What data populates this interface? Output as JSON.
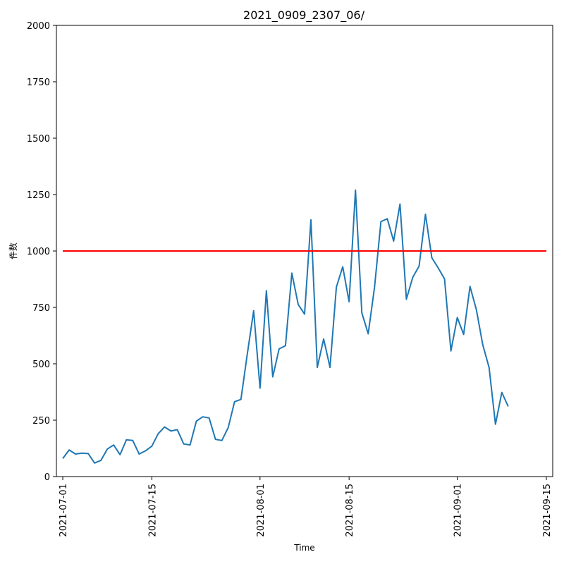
{
  "chart_data": {
    "type": "line",
    "title": "2021_0909_2307_06/",
    "xlabel": "Time",
    "ylabel": "件数",
    "ylim": [
      0,
      2000
    ],
    "xlim": [
      "2021-06-30",
      "2021-09-16"
    ],
    "yticks": [
      0,
      250,
      500,
      750,
      1000,
      1250,
      1500,
      1750,
      2000
    ],
    "xticks": [
      "2021-07-01",
      "2021-07-15",
      "2021-08-01",
      "2021-08-15",
      "2021-09-01",
      "2021-09-15"
    ],
    "grid": false,
    "series": [
      {
        "color": "#1f77b4",
        "x": [
          "2021-07-01",
          "2021-07-02",
          "2021-07-03",
          "2021-07-04",
          "2021-07-05",
          "2021-07-06",
          "2021-07-07",
          "2021-07-08",
          "2021-07-09",
          "2021-07-10",
          "2021-07-11",
          "2021-07-12",
          "2021-07-13",
          "2021-07-14",
          "2021-07-15",
          "2021-07-16",
          "2021-07-17",
          "2021-07-18",
          "2021-07-19",
          "2021-07-20",
          "2021-07-21",
          "2021-07-22",
          "2021-07-23",
          "2021-07-24",
          "2021-07-25",
          "2021-07-26",
          "2021-07-27",
          "2021-07-28",
          "2021-07-29",
          "2021-07-30",
          "2021-07-31",
          "2021-08-01",
          "2021-08-02",
          "2021-08-03",
          "2021-08-04",
          "2021-08-05",
          "2021-08-06",
          "2021-08-07",
          "2021-08-08",
          "2021-08-09",
          "2021-08-10",
          "2021-08-11",
          "2021-08-12",
          "2021-08-13",
          "2021-08-14",
          "2021-08-15",
          "2021-08-16",
          "2021-08-17",
          "2021-08-18",
          "2021-08-19",
          "2021-08-20",
          "2021-08-21",
          "2021-08-22",
          "2021-08-23",
          "2021-08-24",
          "2021-08-25",
          "2021-08-26",
          "2021-08-27",
          "2021-08-28",
          "2021-08-29",
          "2021-08-30",
          "2021-08-31",
          "2021-09-01",
          "2021-09-02",
          "2021-09-03",
          "2021-09-04",
          "2021-09-05",
          "2021-09-06",
          "2021-09-07",
          "2021-09-08",
          "2021-09-09"
        ],
        "values": [
          80,
          118,
          100,
          104,
          102,
          60,
          72,
          122,
          140,
          97,
          163,
          160,
          100,
          114,
          135,
          190,
          220,
          202,
          208,
          145,
          140,
          246,
          265,
          260,
          165,
          160,
          217,
          332,
          342,
          543,
          735,
          392,
          824,
          442,
          566,
          580,
          902,
          763,
          720,
          1138,
          484,
          610,
          484,
          840,
          930,
          775,
          1270,
          726,
          633,
          840,
          1130,
          1143,
          1044,
          1208,
          786,
          883,
          933,
          1163,
          970,
          925,
          876,
          557,
          705,
          630,
          843,
          740,
          585,
          483,
          232,
          373,
          311
        ]
      },
      {
        "color": "#ff0000",
        "x": [
          "2021-07-01",
          "2021-09-15"
        ],
        "values": [
          1000,
          1000
        ]
      }
    ]
  }
}
